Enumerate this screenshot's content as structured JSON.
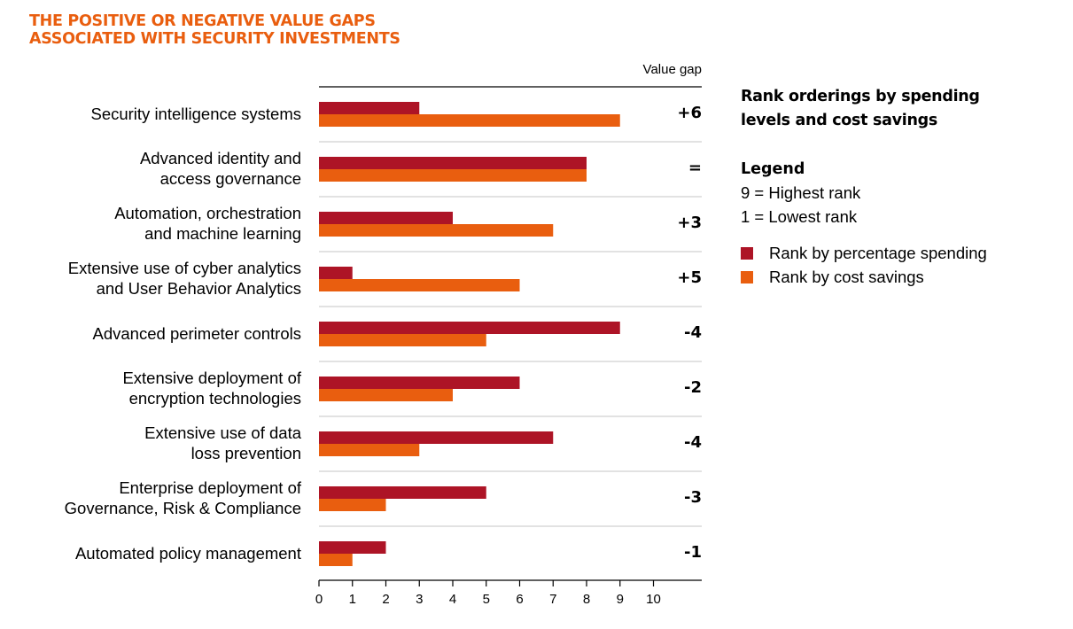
{
  "title": {
    "line1": "THE POSITIVE OR NEGATIVE VALUE GAPS",
    "line2": "ASSOCIATED WITH SECURITY INVESTMENTS"
  },
  "colors": {
    "title": "#E95E0F",
    "spending": "#AD1426",
    "cost_savings": "#E95E0F"
  },
  "sidebar": {
    "heading": "Rank orderings by spending levels and cost savings",
    "legend_title": "Legend",
    "highest": "9 = Highest rank",
    "lowest": "1 = Lowest rank",
    "items": [
      {
        "label": "Rank by percentage spending",
        "color": "#AD1426"
      },
      {
        "label": "Rank by cost savings",
        "color": "#E95E0F"
      }
    ]
  },
  "chart_data": {
    "type": "bar",
    "orientation": "horizontal",
    "title": "THE POSITIVE OR NEGATIVE VALUE GAPS ASSOCIATED WITH SECURITY INVESTMENTS",
    "value_gap_header": "Value gap",
    "categories": [
      [
        "Security intelligence systems"
      ],
      [
        "Advanced identity and",
        "access governance"
      ],
      [
        "Automation, orchestration",
        "and machine learning"
      ],
      [
        "Extensive use of cyber analytics",
        "and User Behavior Analytics"
      ],
      [
        "Advanced perimeter controls"
      ],
      [
        "Extensive deployment of",
        "encryption technologies"
      ],
      [
        "Extensive use of data",
        "loss prevention"
      ],
      [
        "Enterprise deployment of",
        "Governance, Risk & Compliance"
      ],
      [
        "Automated policy management"
      ]
    ],
    "series": [
      {
        "name": "Rank by percentage spending",
        "color": "#AD1426",
        "values": [
          3,
          8,
          4,
          1,
          9,
          6,
          7,
          5,
          2
        ]
      },
      {
        "name": "Rank by cost savings",
        "color": "#E95E0F",
        "values": [
          9,
          8,
          7,
          6,
          5,
          4,
          3,
          2,
          1
        ]
      }
    ],
    "value_gaps": [
      "+6",
      "=",
      "+3",
      "+5",
      "-4",
      "-2",
      "-4",
      "-3",
      "-1"
    ],
    "xlim": [
      0,
      10
    ],
    "xticks": [
      0,
      1,
      2,
      3,
      4,
      5,
      6,
      7,
      8,
      9,
      10
    ],
    "legend_position": "right",
    "grid": false
  }
}
